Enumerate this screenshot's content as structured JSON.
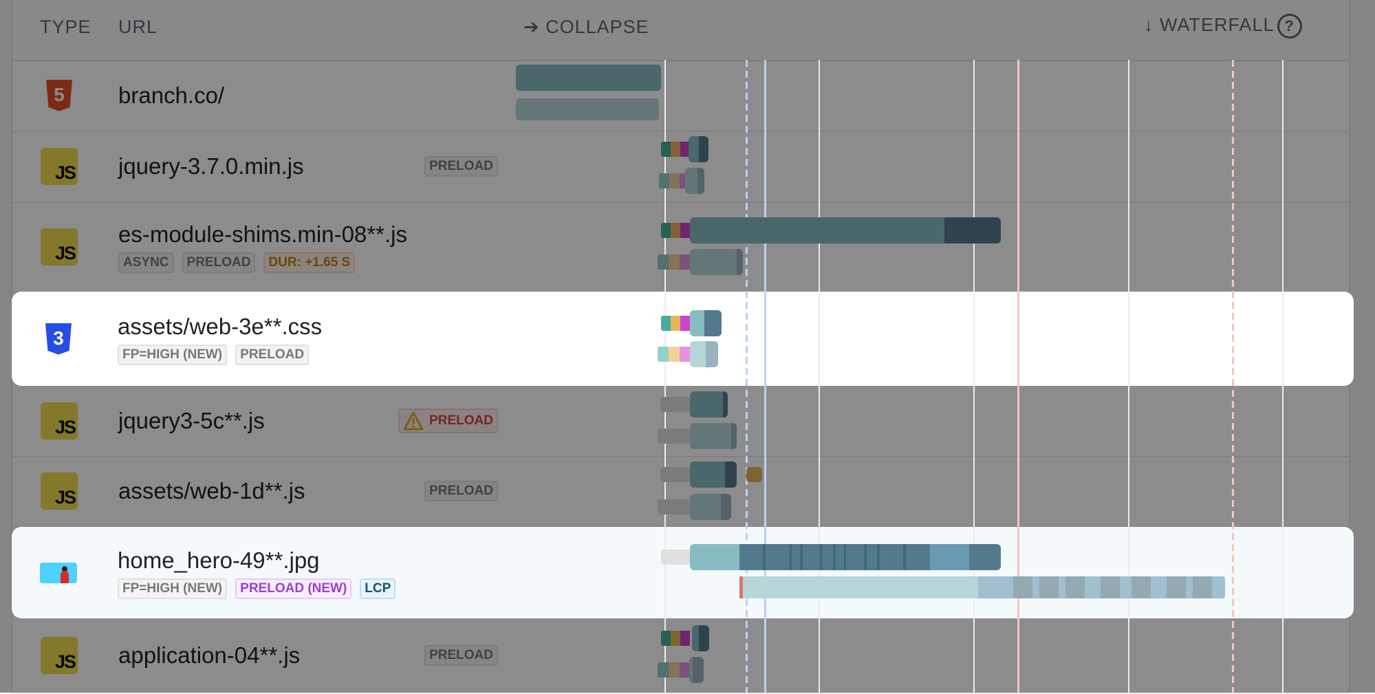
{
  "header": {
    "type_label": "TYPE",
    "url_label": "URL",
    "collapse_label": "➔ COLLAPSE",
    "waterfall_label": "↓ WATERFALL",
    "help_glyph": "?"
  },
  "rows": [
    {
      "type": "html",
      "url": "branch.co/",
      "badges": [],
      "highlighted": false
    },
    {
      "type": "js",
      "url": "jquery-3.7.0.min.js",
      "side_badge": {
        "label": "PRELOAD",
        "style": "gray"
      },
      "badges": [],
      "highlighted": false
    },
    {
      "type": "js",
      "url": "es-module-shims.min-08**.js",
      "badges": [
        {
          "label": "ASYNC",
          "style": "gray"
        },
        {
          "label": "PRELOAD",
          "style": "gray"
        },
        {
          "label": "DUR: +1.65 S",
          "style": "orange"
        }
      ],
      "highlighted": false
    },
    {
      "type": "css",
      "url": "assets/web-3e**.css",
      "badges": [
        {
          "label": "FP=HIGH (NEW)",
          "style": "gray"
        },
        {
          "label": "PRELOAD",
          "style": "gray"
        }
      ],
      "highlighted": true
    },
    {
      "type": "js",
      "url": "jquery3-5c**.js",
      "side_badge": {
        "label": "PRELOAD",
        "style": "warn",
        "icon": "warning-icon"
      },
      "badges": [],
      "highlighted": false
    },
    {
      "type": "js",
      "url": "assets/web-1d**.js",
      "side_badge": {
        "label": "PRELOAD",
        "style": "gray"
      },
      "badges": [],
      "highlighted": false
    },
    {
      "type": "image",
      "url": "home_hero-49**.jpg",
      "badges": [
        {
          "label": "FP=HIGH (NEW)",
          "style": "gray"
        },
        {
          "label": "PRELOAD (NEW)",
          "style": "purple"
        },
        {
          "label": "LCP",
          "style": "lcp"
        }
      ],
      "highlighted": true
    },
    {
      "type": "js",
      "url": "application-04**.js",
      "side_badge": {
        "label": "PRELOAD",
        "style": "gray"
      },
      "badges": [],
      "highlighted": false
    }
  ],
  "icons": {
    "html": "html5-icon",
    "js": "javascript-icon",
    "css": "css3-icon",
    "image": "image-thumbnail-icon"
  },
  "js_icon_text": "JS",
  "html_icon_text": "5",
  "css_icon_text": "3",
  "colors": {
    "html": "#e44d26",
    "js": "#f0db4f",
    "css": "#264de4",
    "bar_main": "#86bcc2",
    "bar_dark": "#537a8c",
    "dns": "#45ada0",
    "connect": "#e8b55a",
    "ssl": "#cc44cc",
    "marker_blue": "#bcd0f5",
    "marker_red": "#f4c6bd",
    "overlay": "rgba(0,0,0,0.45)"
  }
}
